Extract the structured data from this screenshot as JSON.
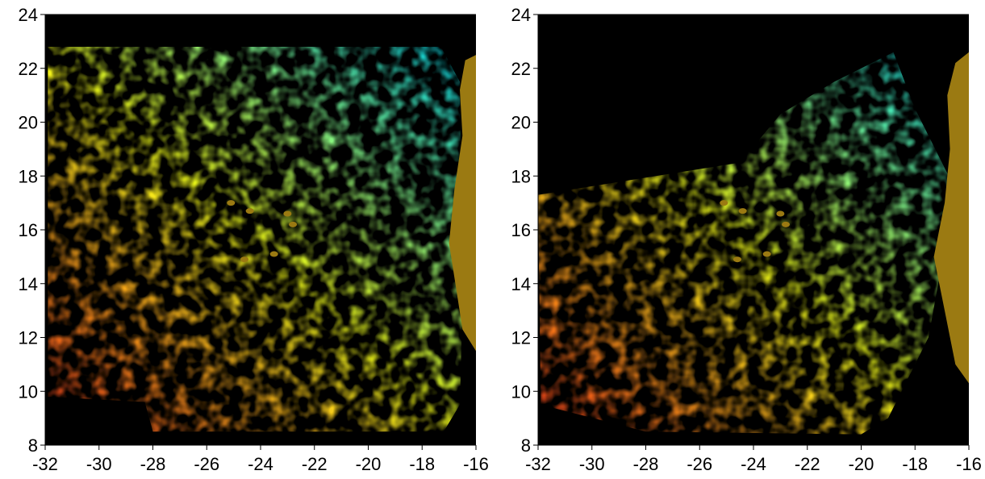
{
  "chart_data": [
    {
      "type": "heatmap",
      "title": "",
      "xlabel": "",
      "ylabel": "",
      "xlim": [
        -32,
        -16
      ],
      "ylim": [
        8,
        24
      ],
      "xticks": [
        -32,
        -30,
        -28,
        -26,
        -24,
        -22,
        -20,
        -18,
        -16
      ],
      "yticks": [
        8,
        10,
        12,
        14,
        16,
        18,
        20,
        22,
        24
      ],
      "colors": {
        "background_no_data": "#000000",
        "land": "#9b7a12",
        "scale_low": "#ff3a1a",
        "scale_mid": "#f2ff1a",
        "scale_high": "#00e6ff"
      }
    },
    {
      "type": "heatmap",
      "title": "",
      "xlabel": "",
      "ylabel": "",
      "xlim": [
        -32,
        -16
      ],
      "ylim": [
        8,
        24
      ],
      "xticks": [
        -32,
        -30,
        -28,
        -26,
        -24,
        -22,
        -20,
        -18,
        -16
      ],
      "yticks": [
        8,
        10,
        12,
        14,
        16,
        18,
        20,
        22,
        24
      ],
      "colors": {
        "background_no_data": "#000000",
        "land": "#9b7a12",
        "scale_low": "#ff3a1a",
        "scale_mid": "#f2ff1a",
        "scale_high": "#00e6ff"
      }
    }
  ]
}
